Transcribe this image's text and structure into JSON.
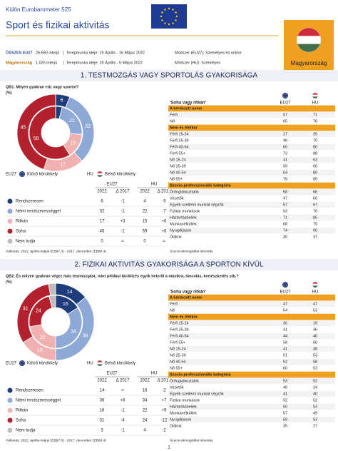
{
  "header": {
    "series": "Külön Eurobarometer 525",
    "title": "Sport és fizikai aktivitás",
    "country": "Magyarország"
  },
  "fieldwork": [
    {
      "label": "ÖSSZES EU27",
      "interviews": "26,580 interjú",
      "period": "Terepmunka ideje: 19 Április - 16 Május 2022",
      "method": "Módszer (EU27): Személyes és online"
    },
    {
      "label": "Magyarország",
      "interviews": "1,025 interjú",
      "period": "Terepmunka ideje: 19 Április - 5 Május 2022",
      "method": "Módszer (HU): Személyes"
    }
  ],
  "sections": [
    {
      "title": "1. TESTMOZGÁS VAGY SPORTOLÁS GYAKORISÁGA",
      "question": "QB1. Milyen gyakran edz vagy sportol?",
      "unit": "(%)",
      "legend": {
        "eu_label": "EU27",
        "eu_ring": "Külső körcikkely",
        "hu_label": "HU",
        "hu_ring": "Belső körcikkely"
      },
      "table": {
        "group_headers": [
          "EU27",
          "HU"
        ],
        "columns": [
          "2022",
          "Δ 2017",
          "2022",
          "Δ 2017"
        ],
        "rows": [
          {
            "label": "Rendszeresen",
            "color": "#1f3d7a",
            "eu27": 6,
            "eu27_change": "-1",
            "hu": 4,
            "hu_change": "-5"
          },
          {
            "label": "Némi rendszerességgel",
            "color": "#8fa9d6",
            "eu27": 32,
            "eu27_change": "-1",
            "hu": 22,
            "hu_change": "-7"
          },
          {
            "label": "Ritkán",
            "color": "#f2b1b1",
            "eu27": 17,
            "eu27_change": "+3",
            "hu": 15,
            "hu_change": "+6"
          },
          {
            "label": "Soha",
            "color": "#b3202e",
            "eu27": 45,
            "eu27_change": "-1",
            "hu": 59,
            "hu_change": "+6"
          },
          {
            "label": "Nem tudja",
            "color": "#bdbdbd",
            "eu27": 0,
            "eu27_change": "=",
            "hu": 0,
            "hu_change": "="
          }
        ]
      },
      "note": "Változás: 2022. április-május (EB97.3) - 2017. december (EB88.4)",
      "breakdown": {
        "title": "'Soha vagy ritkán'",
        "columns": [
          "EU27",
          "HU"
        ],
        "groups": [
          {
            "name": "A kérdezett neme",
            "rows": [
              {
                "label": "Férfi",
                "eu27": 57,
                "hu": 71
              },
              {
                "label": "Nő",
                "eu27": 65,
                "hu": 76
              }
            ]
          },
          {
            "name": "Nem és életkor",
            "rows": [
              {
                "label": "Férfi 15-24",
                "eu27": 27,
                "hu": 35
              },
              {
                "label": "Férfi 25-39",
                "eu27": 46,
                "hu": 70
              },
              {
                "label": "Férfi 40-54",
                "eu27": 60,
                "hu": 80
              },
              {
                "label": "Férfi 55+",
                "eu27": 73,
                "hu": 88
              },
              {
                "label": "Nő 15-24",
                "eu27": 41,
                "hu": 63
              },
              {
                "label": "Nő 25-39",
                "eu27": 59,
                "hu": 66
              },
              {
                "label": "Nő 40-54",
                "eu27": 64,
                "hu": 80
              },
              {
                "label": "Nő 55+",
                "eu27": 75,
                "hu": 89
              }
            ]
          },
          {
            "name": "Szocio-professzionális kategória",
            "rows": [
              {
                "label": "Önfoglalkoztatók",
                "eu27": 58,
                "hu": 66
              },
              {
                "label": "Vezetők",
                "eu27": 47,
                "hu": 60
              },
              {
                "label": "Egyéb szellemi munkát végzők",
                "eu27": 57,
                "hu": 67
              },
              {
                "label": "Fizikai munkások",
                "eu27": 63,
                "hu": 76
              },
              {
                "label": "Háztartásbeliek",
                "eu27": 71,
                "hu": 85
              },
              {
                "label": "Munkanélküliek",
                "eu27": 68,
                "hu": 75
              },
              {
                "label": "Nyugdíjasok",
                "eu27": 74,
                "hu": 90
              },
              {
                "label": "Diákok",
                "eu27": 30,
                "hu": 37
              }
            ]
          }
        ],
        "note": "Szocio-demográfiai lebontás"
      }
    },
    {
      "title": "2. FIZIKAI AKTIVITÁS GYAKORISÁGA A SPORTON KÍVÜL",
      "question": "QB2. És milyen gyakran végez más testmozgást, mint például biciklizés egyik helyről a másikra, táncolás, kertészkedés stb.?",
      "unit": "(%)",
      "legend": {
        "eu_label": "EU27",
        "eu_ring": "Külső körcikkely",
        "hu_label": "HU",
        "hu_ring": "Belső körcikkely"
      },
      "table": {
        "group_headers": [
          "EU27",
          "HU"
        ],
        "columns": [
          "2022",
          "Δ 2017",
          "2022",
          "Δ 2017"
        ],
        "rows": [
          {
            "label": "Rendszeresen",
            "color": "#1f3d7a",
            "eu27": 14,
            "eu27_change": "=",
            "hu": 16,
            "hu_change": "-2"
          },
          {
            "label": "Némi rendszerességgel",
            "color": "#8fa9d6",
            "eu27": 36,
            "eu27_change": "+6",
            "hu": 34,
            "hu_change": "+7"
          },
          {
            "label": "Ritkán",
            "color": "#f2b1b1",
            "eu27": 16,
            "eu27_change": "-1",
            "hu": 22,
            "hu_change": "+9"
          },
          {
            "label": "Soha",
            "color": "#b3202e",
            "eu27": 31,
            "eu27_change": "-4",
            "hu": 24,
            "hu_change": "-12"
          },
          {
            "label": "Nem tudja",
            "color": "#bdbdbd",
            "eu27": 3,
            "eu27_change": "-1",
            "hu": 4,
            "hu_change": "-2"
          }
        ]
      },
      "note": "Változás: 2022. április-május (EB97.3) - 2017. december (EB88.4)",
      "breakdown": {
        "title": "'Soha vagy ritkán'",
        "columns": [
          "EU27",
          "HU"
        ],
        "groups": [
          {
            "name": "A kérdezett neme",
            "rows": [
              {
                "label": "Férfi",
                "eu27": 47,
                "hu": 47
              },
              {
                "label": "Nő",
                "eu27": 54,
                "hu": 53
              }
            ]
          },
          {
            "name": "Nem és életkor",
            "rows": [
              {
                "label": "Férfi 15-24",
                "eu27": 30,
                "hu": 19
              },
              {
                "label": "Férfi 25-39",
                "eu27": 41,
                "hu": 36
              },
              {
                "label": "Férfi 40-54",
                "eu27": 44,
                "hu": 46
              },
              {
                "label": "Férfi 55+",
                "eu27": 58,
                "hu": 60
              },
              {
                "label": "Nő 15-24",
                "eu27": 41,
                "hu": 38
              },
              {
                "label": "Nő 25-39",
                "eu27": 51,
                "hu": 53
              },
              {
                "label": "Nő 40-54",
                "eu27": 52,
                "hu": 58
              },
              {
                "label": "Nő 55+",
                "eu27": 60,
                "hu": 53
              }
            ]
          },
          {
            "name": "Szocio-professzionális kategória",
            "rows": [
              {
                "label": "Önfoglalkoztatók",
                "eu27": 53,
                "hu": 52
              },
              {
                "label": "Vezetők",
                "eu27": 40,
                "hu": 34
              },
              {
                "label": "Egyéb szellemi munkát végzők",
                "eu27": 41,
                "hu": 40
              },
              {
                "label": "Fizikai munkások",
                "eu27": 52,
                "hu": 52
              },
              {
                "label": "Háztartásbeliek",
                "eu27": 50,
                "hu": 53
              },
              {
                "label": "Munkanélküliek",
                "eu27": 57,
                "hu": 49
              },
              {
                "label": "Nyugdíjasok",
                "eu27": 59,
                "hu": 53
              },
              {
                "label": "Diákok",
                "eu27": 35,
                "hu": 27
              }
            ]
          }
        ],
        "note": "Szocio-demográfiai lebontás"
      }
    }
  ],
  "page": "1"
}
